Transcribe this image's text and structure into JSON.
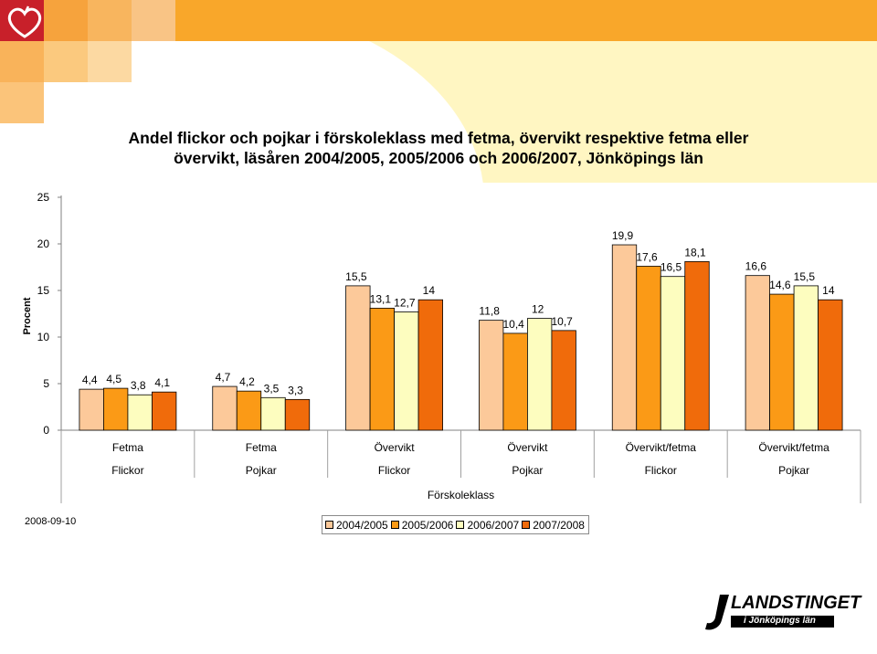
{
  "slide": {
    "date_text": "2008-09-10",
    "logo_text": "LANDSTINGET",
    "logo_subtext": "i Jönköpings län",
    "colors": {
      "bg_yellow": "#fff5b8",
      "top_band": "#f7a21a",
      "squares": [
        "#cc2222",
        "#f5a541",
        "#f9b463",
        "#f7c07e"
      ]
    }
  },
  "chart_data": {
    "type": "bar",
    "title_lines": [
      "Andel flickor och pojkar i förskoleklass med fetma, övervikt respektive fetma eller",
      "övervikt, läsåren 2004/2005, 2005/2006 och 2006/2007, Jönköpings län"
    ],
    "ylabel": "Procent",
    "xlabel": "Förskoleklass",
    "ylim": [
      0,
      25
    ],
    "yticks": [
      0,
      5,
      10,
      15,
      20,
      25
    ],
    "grid": false,
    "legend_position": "bottom",
    "categories": [
      {
        "measure": "Fetma",
        "group": "Flickor"
      },
      {
        "measure": "Fetma",
        "group": "Pojkar"
      },
      {
        "measure": "Övervikt",
        "group": "Flickor"
      },
      {
        "measure": "Övervikt",
        "group": "Pojkar"
      },
      {
        "measure": "Övervikt/fetma",
        "group": "Flickor"
      },
      {
        "measure": "Övervikt/fetma",
        "group": "Pojkar"
      }
    ],
    "series": [
      {
        "name": "2004/2005",
        "color": "#fcc99a",
        "values": [
          4.4,
          4.7,
          15.5,
          11.8,
          19.9,
          16.6
        ],
        "labels": [
          "4,4",
          "4,7",
          "15,5",
          "11,8",
          "19,9",
          "16,6"
        ]
      },
      {
        "name": "2005/2006",
        "color": "#fb9a16",
        "values": [
          4.5,
          4.2,
          13.1,
          10.4,
          17.6,
          14.6
        ],
        "labels": [
          "4,5",
          "4,2",
          "13,1",
          "10,4",
          "17,6",
          "14,6"
        ]
      },
      {
        "name": "2006/2007",
        "color": "#fdfdbf",
        "values": [
          3.8,
          3.5,
          12.7,
          12,
          16.5,
          15.5
        ],
        "labels": [
          "3,8",
          "3,5",
          "12,7",
          "12",
          "16,5",
          "15,5"
        ]
      },
      {
        "name": "2007/2008",
        "color": "#f06b0b",
        "values": [
          4.1,
          3.3,
          14,
          10.7,
          18.1,
          14
        ],
        "labels": [
          "4,1",
          "3,3",
          "14",
          "10,7",
          "18,1",
          "14"
        ]
      }
    ]
  }
}
